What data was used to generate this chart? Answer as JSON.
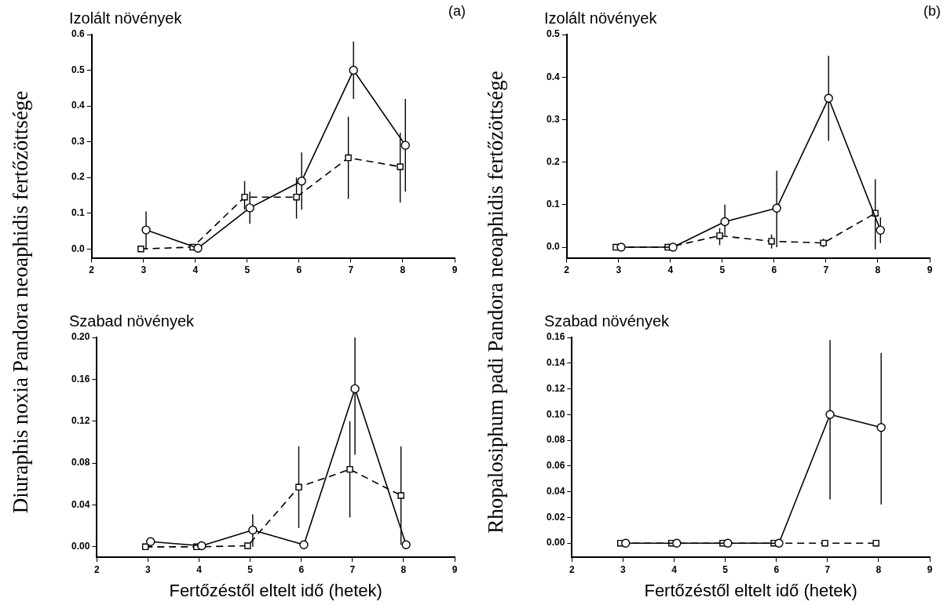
{
  "chart_data": [
    {
      "type": "line",
      "title": "Izolált növények",
      "ylabel": "Diuraphis noxia Pandora neoaphidis fertőzöttsége",
      "annotations": [
        "(a)"
      ],
      "xlim": [
        2,
        9
      ],
      "xticks": [
        2,
        3,
        4,
        5,
        6,
        7,
        8,
        9
      ],
      "ylim": [
        -0.025,
        0.6
      ],
      "yticks": [
        {
          "value": 0,
          "label": "0.0"
        },
        0.1,
        0.2,
        0.3,
        0.4,
        0.5,
        0.6
      ],
      "series": [
        {
          "color": "#000000",
          "marker": "circle",
          "line_style": "solid",
          "x": [
            3.05,
            4.05,
            5.05,
            6.05,
            7.05,
            8.05
          ],
          "values": [
            0.053,
            0.002,
            0.115,
            0.19,
            0.5,
            0.29
          ],
          "errors": [
            [
              0.0,
              0.105
            ],
            null,
            [
              0.07,
              0.16
            ],
            [
              0.11,
              0.27
            ],
            [
              0.42,
              0.58
            ],
            [
              0.16,
              0.42
            ]
          ]
        },
        {
          "color": "#000000",
          "marker": "square",
          "line_style": "dashed",
          "x": [
            2.95,
            3.95,
            4.95,
            5.95,
            6.95,
            7.95
          ],
          "values": [
            0.0,
            0.005,
            0.145,
            0.145,
            0.255,
            0.23
          ],
          "errors": [
            null,
            null,
            [
              0.11,
              0.19
            ],
            [
              0.085,
              0.2
            ],
            [
              0.14,
              0.37
            ],
            [
              0.13,
              0.325
            ]
          ]
        }
      ]
    },
    {
      "type": "line",
      "title": "Szabad növények",
      "xlabel": "Fertőzéstől eltelt idő (hetek)",
      "xlim": [
        2,
        9
      ],
      "xticks": [
        2,
        3,
        4,
        5,
        6,
        7,
        8,
        9
      ],
      "ylim": [
        -0.01,
        0.2
      ],
      "yticks": [
        {
          "value": 0,
          "label": "0.00"
        },
        0.04,
        0.08,
        0.12,
        0.16,
        {
          "value": 0.2,
          "label": "0.20"
        }
      ],
      "series": [
        {
          "color": "#000000",
          "marker": "circle",
          "line_style": "solid",
          "x": [
            3.05,
            4.05,
            5.05,
            6.05,
            7.05,
            8.05
          ],
          "values": [
            0.005,
            0.001,
            0.016,
            0.002,
            0.151,
            0.002
          ],
          "errors": [
            null,
            null,
            [
              0.0,
              0.031
            ],
            null,
            [
              0.088,
              0.2
            ],
            null
          ]
        },
        {
          "color": "#000000",
          "marker": "square",
          "line_style": "dashed",
          "x": [
            2.95,
            3.95,
            4.95,
            5.95,
            6.95,
            7.95
          ],
          "values": [
            0.0,
            0.0,
            0.001,
            0.057,
            0.074,
            0.049
          ],
          "errors": [
            null,
            null,
            null,
            [
              0.018,
              0.096
            ],
            [
              0.028,
              0.12
            ],
            [
              0.002,
              0.096
            ]
          ]
        }
      ]
    },
    {
      "type": "line",
      "title": "Izolált növények",
      "ylabel": "Rhopalosiphum padi Pandora neoaphidis fertőzöttsége",
      "annotations": [
        "(b)"
      ],
      "xlim": [
        2,
        9
      ],
      "xticks": [
        2,
        3,
        4,
        5,
        6,
        7,
        8,
        9
      ],
      "ylim": [
        -0.025,
        0.5
      ],
      "yticks": [
        {
          "value": 0,
          "label": "0.0"
        },
        0.1,
        0.2,
        0.3,
        0.4,
        0.5
      ],
      "series": [
        {
          "color": "#000000",
          "marker": "circle",
          "line_style": "solid",
          "x": [
            3.05,
            4.05,
            5.05,
            6.05,
            7.05,
            8.05
          ],
          "values": [
            0.0,
            0.0,
            0.06,
            0.092,
            0.35,
            0.04
          ],
          "errors": [
            null,
            null,
            [
              0.028,
              0.1
            ],
            [
              0.0,
              0.18
            ],
            [
              0.25,
              0.45
            ],
            [
              0.01,
              0.07
            ]
          ]
        },
        {
          "color": "#000000",
          "marker": "square",
          "line_style": "dashed",
          "x": [
            2.95,
            3.95,
            4.95,
            5.95,
            6.95,
            7.95
          ],
          "values": [
            0.0,
            0.0,
            0.027,
            0.014,
            0.01,
            0.08
          ],
          "errors": [
            null,
            null,
            [
              0.005,
              0.045
            ],
            [
              -0.003,
              0.03
            ],
            [
              0.0,
              0.02
            ],
            [
              -0.005,
              0.16
            ]
          ]
        }
      ]
    },
    {
      "type": "line",
      "title": "Szabad növények",
      "xlabel": "Fertőzéstől eltelt idő (hetek)",
      "xlim": [
        2,
        9
      ],
      "xticks": [
        2,
        3,
        4,
        5,
        6,
        7,
        8,
        9
      ],
      "ylim": [
        -0.011,
        0.16
      ],
      "yticks": [
        {
          "value": 0,
          "label": "0.00"
        },
        0.02,
        0.04,
        0.06,
        0.08,
        {
          "value": 0.1,
          "label": "0.10"
        },
        0.12,
        0.14,
        0.16
      ],
      "series": [
        {
          "color": "#000000",
          "marker": "circle",
          "line_style": "solid",
          "x": [
            3.05,
            4.05,
            5.05,
            6.05,
            7.05,
            8.05
          ],
          "values": [
            0.0,
            0.0,
            0.0,
            0.0,
            0.1,
            0.09
          ],
          "errors": [
            null,
            null,
            null,
            null,
            [
              0.034,
              0.158
            ],
            [
              0.03,
              0.148
            ]
          ]
        },
        {
          "color": "#000000",
          "marker": "square",
          "line_style": "dashed",
          "x": [
            2.95,
            3.95,
            4.95,
            5.95,
            6.95,
            7.95
          ],
          "values": [
            0.0,
            0.0,
            0.0,
            0.0,
            0.0,
            0.0
          ]
        }
      ]
    }
  ]
}
